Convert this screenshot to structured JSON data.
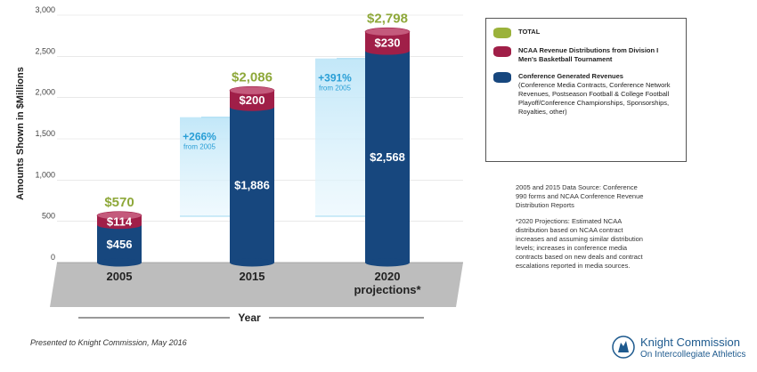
{
  "chart_data": {
    "type": "bar",
    "stacked": true,
    "categories": [
      "2005",
      "2015",
      "2020\nprojections*"
    ],
    "series": [
      {
        "name": "Conference Generated Revenues",
        "values": [
          456,
          1886,
          2568
        ],
        "labels": [
          "$456",
          "$1,886",
          "$2,568"
        ],
        "color": "#17477e"
      },
      {
        "name": "NCAA Revenue Distributions from Division I Men's Basketball Tournament",
        "values": [
          114,
          200,
          230
        ],
        "labels": [
          "$114",
          "$200",
          "$230"
        ],
        "color": "#a01f48"
      }
    ],
    "totals": [
      570,
      2086,
      2798
    ],
    "total_labels": [
      "$570",
      "$2,086",
      "$2,798"
    ],
    "total_color": "#9bb23b",
    "growth": [
      {
        "category_index": 1,
        "label": "+266%",
        "sub": "from 2005"
      },
      {
        "category_index": 2,
        "label": "+391%",
        "sub": "from 2005"
      }
    ],
    "growth_color": "#2a9fd6",
    "yticks": [
      0,
      500,
      1000,
      1500,
      2000,
      2500,
      3000
    ],
    "ytick_labels": [
      "0",
      "500",
      "1,000",
      "1,500",
      "2,000",
      "2,500",
      "3,000"
    ],
    "ylim": [
      0,
      3000
    ],
    "ylabel": "Amounts Shown in $Millions",
    "xlabel": "Year"
  },
  "legend": {
    "items": [
      {
        "title": "TOTAL",
        "detail": "",
        "color": "#9bb23b"
      },
      {
        "title": "NCAA Revenue Distributions from Division I Men's Basketball Tournament",
        "detail": "",
        "color": "#a01f48"
      },
      {
        "title": "Conference Generated Revenues",
        "detail": "(Conference Media Contracts, Conference Network Revenues, Postseason Football & College Football Playoff/Conference Championships, Sponsorships, Royalties, other)",
        "color": "#17477e"
      }
    ]
  },
  "notes": {
    "source": "2005 and 2015 Data Source: Conference 990 forms and NCAA Conference Revenue Distribution Reports",
    "projection": "*2020 Projections: Estimated NCAA distribution based on NCAA contract increases and assuming similar distribution levels; increases in conference media contracts based on new deals and contract escalations reported in media sources."
  },
  "footer": {
    "presented": "Presented to Knight Commission, May 2016"
  },
  "logo": {
    "title": "Knight Commission",
    "subtitle": "On Intercollegiate Athletics"
  }
}
